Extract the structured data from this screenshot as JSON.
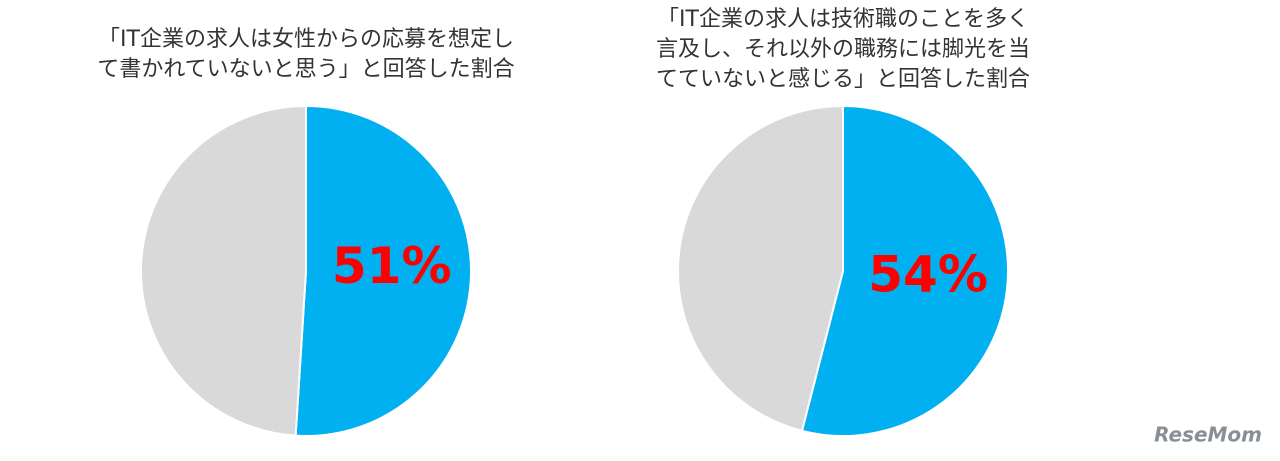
{
  "chart_data": [
    {
      "type": "pie",
      "title": [
        "「IT企業の求人は女性からの応募を想定し",
        "て書かれていないと思う」と回答した割合"
      ],
      "values": [
        51,
        49
      ],
      "value_labels": [
        "51%",
        null
      ],
      "colors": [
        "#00b0f0",
        "#d9d9d9"
      ]
    },
    {
      "type": "pie",
      "title": [
        "「IT企業の求人は技術職のことを多く",
        "言及し、それ以外の職務には脚光を当",
        "てていないと感じる」と回答した割合"
      ],
      "values": [
        54,
        46
      ],
      "value_labels": [
        "54%",
        null
      ],
      "colors": [
        "#00b0f0",
        "#d9d9d9"
      ]
    }
  ],
  "watermark": "ReseMom"
}
